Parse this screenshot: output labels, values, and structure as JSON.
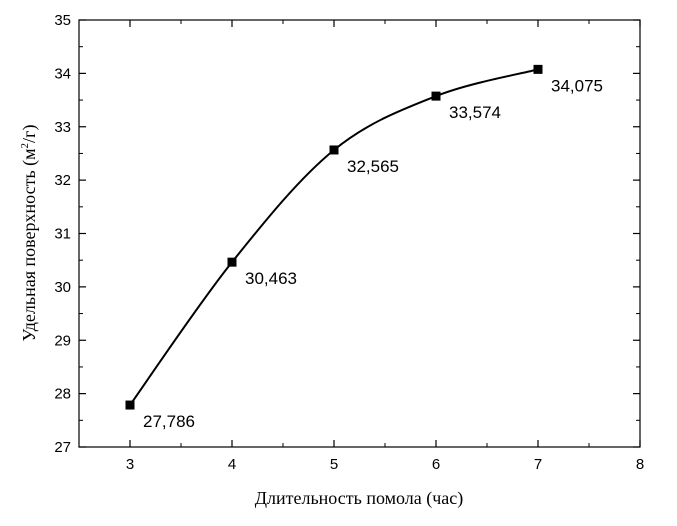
{
  "chart_data": {
    "type": "line",
    "title": "",
    "xlabel": "Длительность помола (час)",
    "ylabel": {
      "before": "Удельная поверхность (м",
      "superscript": "2",
      "after": "/г)"
    },
    "xlim": [
      2.5,
      8
    ],
    "ylim": [
      27,
      35
    ],
    "xticks": [
      3,
      4,
      5,
      6,
      7,
      8
    ],
    "yticks": [
      27,
      28,
      29,
      30,
      31,
      32,
      33,
      34,
      35
    ],
    "grid": false,
    "legend": "none",
    "series": [
      {
        "x": [
          3,
          4,
          5,
          6,
          7
        ],
        "y": [
          27.786,
          30.463,
          32.565,
          33.574,
          34.075
        ],
        "labels": [
          "27,786",
          "30,463",
          "32,565",
          "33,574",
          "34,075"
        ],
        "marker": "square",
        "color": "#000000"
      }
    ]
  }
}
